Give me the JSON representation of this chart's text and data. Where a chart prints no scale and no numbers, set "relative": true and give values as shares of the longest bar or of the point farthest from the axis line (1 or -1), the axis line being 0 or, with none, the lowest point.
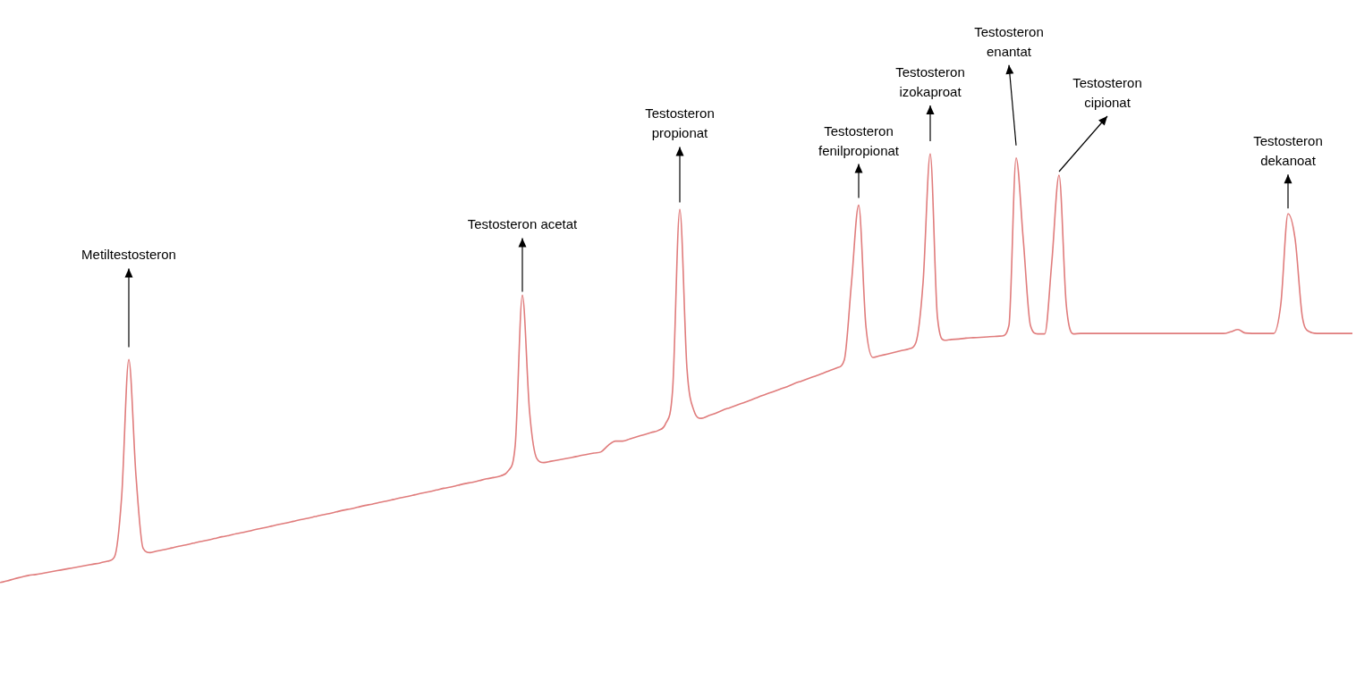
{
  "chart_data": {
    "type": "line",
    "relative": true,
    "legend": false,
    "marker": "none",
    "line_style": "solid",
    "categories": [
      null,
      null,
      null,
      null,
      null,
      null,
      null,
      null,
      null,
      null,
      null,
      null,
      null,
      null,
      null,
      null,
      null,
      null,
      null,
      null,
      null,
      null,
      null,
      null,
      null,
      null,
      null,
      null,
      null,
      null,
      null,
      null,
      null,
      null,
      null,
      null,
      null,
      null,
      null,
      null,
      null,
      null,
      null,
      null,
      null,
      null,
      null,
      null,
      null,
      null,
      null,
      null,
      null,
      null,
      null,
      null,
      null,
      null,
      null,
      null,
      null,
      null,
      null,
      null,
      null,
      null,
      null,
      null,
      null,
      null,
      null,
      null,
      null,
      null,
      null,
      null,
      null,
      null,
      null,
      null,
      null,
      null,
      null,
      null,
      null,
      null,
      null,
      null,
      null,
      null,
      null,
      null,
      null,
      null,
      null,
      null,
      null,
      null,
      null,
      null,
      null,
      null,
      null,
      null,
      null,
      null,
      null,
      null,
      null,
      null,
      null,
      null,
      null,
      null,
      null,
      null,
      null,
      null,
      null,
      null,
      null,
      null,
      null,
      null,
      null,
      null,
      null,
      null,
      null,
      null,
      null,
      null,
      null,
      null,
      null,
      null,
      null,
      null,
      null,
      null,
      null,
      null,
      null,
      null,
      null,
      null,
      null,
      null,
      null,
      null,
      null,
      null,
      null,
      null,
      null,
      null,
      null,
      null,
      null,
      null,
      null,
      null,
      null,
      null,
      null,
      null,
      null,
      null,
      null,
      null,
      null,
      null,
      null,
      null,
      null,
      null,
      null,
      null,
      null,
      null,
      null,
      null,
      null,
      null,
      null,
      null,
      null,
      null,
      null,
      null
    ],
    "series": [
      {
        "color": "#e07c7c",
        "values": [
          0,
          0.004,
          0.009,
          0.013,
          0.017,
          0.019,
          0.022,
          0.025,
          0.028,
          0.031,
          0.034,
          0.037,
          0.04,
          0.043,
          0.046,
          0.05,
          0.06,
          0.2,
          0.52,
          0.25,
          0.08,
          0.07,
          0.074,
          0.077,
          0.081,
          0.085,
          0.088,
          0.092,
          0.096,
          0.099,
          0.103,
          0.107,
          0.11,
          0.114,
          0.117,
          0.121,
          0.125,
          0.128,
          0.132,
          0.136,
          0.139,
          0.143,
          0.147,
          0.15,
          0.154,
          0.158,
          0.161,
          0.165,
          0.169,
          0.172,
          0.176,
          0.18,
          0.183,
          0.187,
          0.19,
          0.194,
          0.198,
          0.201,
          0.205,
          0.209,
          0.212,
          0.216,
          0.22,
          0.223,
          0.227,
          0.231,
          0.234,
          0.238,
          0.242,
          0.245,
          0.249,
          0.26,
          0.32,
          0.67,
          0.4,
          0.29,
          0.28,
          0.283,
          0.286,
          0.289,
          0.292,
          0.296,
          0.299,
          0.302,
          0.305,
          0.32,
          0.33,
          0.33,
          0.335,
          0.34,
          0.345,
          0.35,
          0.355,
          0.37,
          0.45,
          0.87,
          0.5,
          0.4,
          0.383,
          0.389,
          0.395,
          0.402,
          0.408,
          0.414,
          0.42,
          0.426,
          0.433,
          0.439,
          0.445,
          0.451,
          0.457,
          0.464,
          0.47,
          0.476,
          0.482,
          0.488,
          0.495,
          0.501,
          0.52,
          0.7,
          0.88,
          0.6,
          0.525,
          0.529,
          0.533,
          0.537,
          0.541,
          0.545,
          0.56,
          0.7,
          1,
          0.62,
          0.565,
          0.567,
          0.568,
          0.57,
          0.571,
          0.572,
          0.573,
          0.574,
          0.575,
          0.6,
          0.99,
          0.8,
          0.6,
          0.58,
          0.58,
          0.75,
          0.95,
          0.65,
          0.58,
          0.581,
          0.581,
          0.581,
          0.581,
          0.581,
          0.581,
          0.581,
          0.581,
          0.581,
          0.581,
          0.581,
          0.581,
          0.581,
          0.581,
          0.581,
          0.581,
          0.581,
          0.581,
          0.581,
          0.581,
          0.581,
          0.585,
          0.59,
          0.582,
          0.581,
          0.581,
          0.581,
          0.581,
          0.65,
          0.86,
          0.8,
          0.62,
          0.585,
          0.581,
          0.581,
          0.581,
          0.581,
          0.581,
          0.581
        ]
      }
    ],
    "annotations": [
      "Metiltestosteron",
      "Testosteron acetat",
      "Testosteron propionat",
      "Testosteron fenilpropionat",
      "Testosteron izokaproat",
      "Testosteron enantat",
      "Testosteron cipionat",
      "Testosteron dekanoat"
    ]
  }
}
